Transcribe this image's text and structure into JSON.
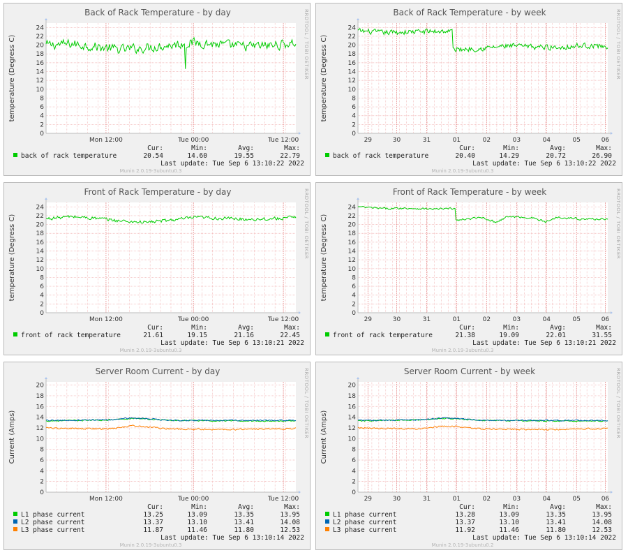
{
  "page": {
    "background": "#ffffff",
    "panel_background": "#f0f0f0",
    "plot_background": "#ffffff",
    "grid_color": "#f2b5b5"
  },
  "chart_data": [
    {
      "type": "line",
      "title": "Back of Rack Temperature - by day",
      "ylabel": "temperature (Degress C)",
      "ylim": [
        0,
        25
      ],
      "yticks": [
        0,
        2,
        4,
        6,
        8,
        10,
        12,
        14,
        16,
        18,
        20,
        22,
        24
      ],
      "xtick_labels": [
        "Mon 12:00",
        "Tue 00:00",
        "Tue 12:00"
      ],
      "xtick_positions": [
        0.24,
        0.59,
        0.95
      ],
      "series": [
        {
          "name": "back of rack temperature",
          "color": "#00cc00",
          "approx_shape": [
            [
              0,
              20.0
            ],
            [
              0.1,
              20.3
            ],
            [
              0.2,
              19.6
            ],
            [
              0.3,
              19.0
            ],
            [
              0.4,
              19.4
            ],
            [
              0.5,
              20.0
            ],
            [
              0.6,
              20.6
            ],
            [
              0.7,
              20.1
            ],
            [
              0.8,
              19.7
            ],
            [
              0.9,
              19.9
            ],
            [
              1,
              20.5
            ]
          ],
          "noise": 1.4,
          "cur": "20.54",
          "min": "14.60",
          "avg": "19.55",
          "max": "22.79"
        }
      ],
      "stat_headers": [
        "Cur:",
        "Min:",
        "Avg:",
        "Max:"
      ],
      "last_update": "Last update:  Tue Sep  6 13:10:22 2022",
      "version": "Munin 2.0.19-3ubuntu0.3",
      "side_text": "RRDTOOL / TOBI OETIKER"
    },
    {
      "type": "line",
      "title": "Back of Rack Temperature - by week",
      "ylabel": "temperature (Degress C)",
      "ylim": [
        0,
        25
      ],
      "yticks": [
        0,
        2,
        4,
        6,
        8,
        10,
        12,
        14,
        16,
        18,
        20,
        22,
        24
      ],
      "xtick_labels": [
        "29",
        "30",
        "31",
        "01",
        "02",
        "03",
        "04",
        "05",
        "06"
      ],
      "xtick_positions": [
        0.04,
        0.155,
        0.275,
        0.395,
        0.515,
        0.635,
        0.755,
        0.875,
        0.99
      ],
      "series": [
        {
          "name": "back of rack temperature",
          "color": "#00cc00",
          "approx_shape": [
            [
              0,
              23.2
            ],
            [
              0.1,
              22.8
            ],
            [
              0.2,
              23.0
            ],
            [
              0.3,
              23.1
            ],
            [
              0.38,
              23.2
            ],
            [
              0.39,
              19.0
            ],
            [
              0.5,
              19.3
            ],
            [
              0.6,
              19.8
            ],
            [
              0.7,
              19.6
            ],
            [
              0.8,
              19.5
            ],
            [
              0.9,
              19.9
            ],
            [
              1,
              19.7
            ]
          ],
          "noise": 0.8,
          "cur": "20.40",
          "min": "14.29",
          "avg": "20.72",
          "max": "26.90"
        }
      ],
      "stat_headers": [
        "Cur:",
        "Min:",
        "Avg:",
        "Max:"
      ],
      "last_update": "Last update:  Tue Sep  6 13:10:22 2022",
      "version": "Munin 2.0.19-3ubuntu0.3",
      "side_text": "RRDTOOL / TOBI OETIKER"
    },
    {
      "type": "line",
      "title": "Front of Rack Temperature - by day",
      "ylabel": "temperature (Degress C)",
      "ylim": [
        0,
        25
      ],
      "yticks": [
        0,
        2,
        4,
        6,
        8,
        10,
        12,
        14,
        16,
        18,
        20,
        22,
        24
      ],
      "xtick_labels": [
        "Mon 12:00",
        "Tue 00:00",
        "Tue 12:00"
      ],
      "xtick_positions": [
        0.24,
        0.59,
        0.95
      ],
      "series": [
        {
          "name": "front of rack temperature",
          "color": "#00cc00",
          "approx_shape": [
            [
              0,
              21.3
            ],
            [
              0.1,
              21.8
            ],
            [
              0.2,
              21.4
            ],
            [
              0.3,
              20.8
            ],
            [
              0.4,
              20.5
            ],
            [
              0.5,
              21.0
            ],
            [
              0.6,
              21.6
            ],
            [
              0.7,
              21.4
            ],
            [
              0.8,
              21.2
            ],
            [
              0.9,
              21.3
            ],
            [
              1,
              21.6
            ]
          ],
          "noise": 0.5,
          "cur": "21.61",
          "min": "19.15",
          "avg": "21.16",
          "max": "22.45"
        }
      ],
      "stat_headers": [
        "Cur:",
        "Min:",
        "Avg:",
        "Max:"
      ],
      "last_update": "Last update:  Tue Sep  6 13:10:21 2022",
      "version": "Munin 2.0.19-3ubuntu0.3",
      "side_text": "RRDTOOL / TOBI OETIKER"
    },
    {
      "type": "line",
      "title": "Front of Rack Temperature - by week",
      "ylabel": "temperature (Degress C)",
      "ylim": [
        0,
        25
      ],
      "yticks": [
        0,
        2,
        4,
        6,
        8,
        10,
        12,
        14,
        16,
        18,
        20,
        22,
        24
      ],
      "xtick_labels": [
        "29",
        "30",
        "31",
        "01",
        "02",
        "03",
        "04",
        "05",
        "06"
      ],
      "xtick_positions": [
        0.04,
        0.155,
        0.275,
        0.395,
        0.515,
        0.635,
        0.755,
        0.875,
        0.99
      ],
      "series": [
        {
          "name": "front of rack temperature",
          "color": "#00cc00",
          "approx_shape": [
            [
              0,
              24.0
            ],
            [
              0.1,
              23.6
            ],
            [
              0.2,
              23.7
            ],
            [
              0.3,
              23.5
            ],
            [
              0.39,
              23.6
            ],
            [
              0.4,
              21.0
            ],
            [
              0.5,
              21.6
            ],
            [
              0.55,
              20.5
            ],
            [
              0.6,
              21.8
            ],
            [
              0.7,
              21.5
            ],
            [
              0.75,
              20.6
            ],
            [
              0.8,
              21.7
            ],
            [
              0.9,
              21.2
            ],
            [
              1,
              21.3
            ]
          ],
          "noise": 0.3,
          "cur": "21.38",
          "min": "19.09",
          "avg": "22.01",
          "max": "31.55"
        }
      ],
      "stat_headers": [
        "Cur:",
        "Min:",
        "Avg:",
        "Max:"
      ],
      "last_update": "Last update:  Tue Sep  6 13:10:21 2022",
      "version": "Munin 2.0.19-3ubuntu0.3",
      "side_text": "RRDTOOL / TOBI OETIKER"
    },
    {
      "type": "line",
      "title": "Server Room Current - by day",
      "ylabel": "Current (Amps)",
      "ylim": [
        0,
        20.6
      ],
      "yticks": [
        0,
        2,
        4,
        6,
        8,
        10,
        12,
        14,
        16,
        18,
        20
      ],
      "xtick_labels": [
        "Mon 12:00",
        "Tue 00:00",
        "Tue 12:00"
      ],
      "xtick_positions": [
        0.24,
        0.59,
        0.95
      ],
      "series": [
        {
          "name": "L1 phase current",
          "color": "#00cc00",
          "approx_shape": [
            [
              0,
              13.3
            ],
            [
              0.25,
              13.5
            ],
            [
              0.35,
              13.8
            ],
            [
              0.5,
              13.4
            ],
            [
              0.75,
              13.3
            ],
            [
              1,
              13.3
            ]
          ],
          "noise": 0.15,
          "cur": "13.25",
          "min": "13.09",
          "avg": "13.35",
          "max": "13.95"
        },
        {
          "name": "L2 phase current",
          "color": "#0066b3",
          "approx_shape": [
            [
              0,
              13.4
            ],
            [
              0.25,
              13.5
            ],
            [
              0.35,
              13.9
            ],
            [
              0.5,
              13.4
            ],
            [
              0.75,
              13.4
            ],
            [
              1,
              13.4
            ]
          ],
          "noise": 0.15,
          "cur": "13.37",
          "min": "13.10",
          "avg": "13.41",
          "max": "14.08"
        },
        {
          "name": "L3 phase current",
          "color": "#ff8000",
          "approx_shape": [
            [
              0,
              12.0
            ],
            [
              0.25,
              11.8
            ],
            [
              0.35,
              12.4
            ],
            [
              0.5,
              11.8
            ],
            [
              0.75,
              11.7
            ],
            [
              1,
              11.9
            ]
          ],
          "noise": 0.18,
          "cur": "11.87",
          "min": "11.46",
          "avg": "11.80",
          "max": "12.53"
        }
      ],
      "stat_headers": [
        "Cur:",
        "Min:",
        "Avg:",
        "Max:"
      ],
      "last_update": "Last update:  Tue Sep  6 13:10:14 2022",
      "version": "Munin 2.0.19-3ubuntu0.3",
      "side_text": "RRDTOOL / TOBI OETIKER"
    },
    {
      "type": "line",
      "title": "Server Room Current - by week",
      "ylabel": "Current (Amps)",
      "ylim": [
        0,
        20.6
      ],
      "yticks": [
        0,
        2,
        4,
        6,
        8,
        10,
        12,
        14,
        16,
        18,
        20
      ],
      "xtick_labels": [
        "29",
        "30",
        "31",
        "01",
        "02",
        "03",
        "04",
        "05",
        "06"
      ],
      "xtick_positions": [
        0.04,
        0.155,
        0.275,
        0.395,
        0.515,
        0.635,
        0.755,
        0.875,
        0.99
      ],
      "series": [
        {
          "name": "L1 phase current",
          "color": "#00cc00",
          "approx_shape": [
            [
              0,
              13.3
            ],
            [
              0.25,
              13.5
            ],
            [
              0.35,
              13.8
            ],
            [
              0.5,
              13.4
            ],
            [
              0.75,
              13.3
            ],
            [
              1,
              13.3
            ]
          ],
          "noise": 0.15,
          "cur": "13.28",
          "min": "13.09",
          "avg": "13.35",
          "max": "13.95"
        },
        {
          "name": "L2 phase current",
          "color": "#0066b3",
          "approx_shape": [
            [
              0,
              13.4
            ],
            [
              0.25,
              13.5
            ],
            [
              0.35,
              13.9
            ],
            [
              0.5,
              13.4
            ],
            [
              0.75,
              13.4
            ],
            [
              1,
              13.4
            ]
          ],
          "noise": 0.15,
          "cur": "13.37",
          "min": "13.10",
          "avg": "13.41",
          "max": "14.08"
        },
        {
          "name": "L3 phase current",
          "color": "#ff8000",
          "approx_shape": [
            [
              0,
              12.0
            ],
            [
              0.25,
              11.8
            ],
            [
              0.35,
              12.4
            ],
            [
              0.5,
              11.8
            ],
            [
              0.75,
              11.7
            ],
            [
              1,
              11.9
            ]
          ],
          "noise": 0.18,
          "cur": "11.92",
          "min": "11.46",
          "avg": "11.80",
          "max": "12.53"
        }
      ],
      "stat_headers": [
        "Cur:",
        "Min:",
        "Avg:",
        "Max:"
      ],
      "last_update": "Last update:  Tue Sep  6 13:10:14 2022",
      "version": "Munin 2.0.19-3ubuntu0.2",
      "side_text": "RRDTOOL / TOBI OETIKER"
    }
  ]
}
